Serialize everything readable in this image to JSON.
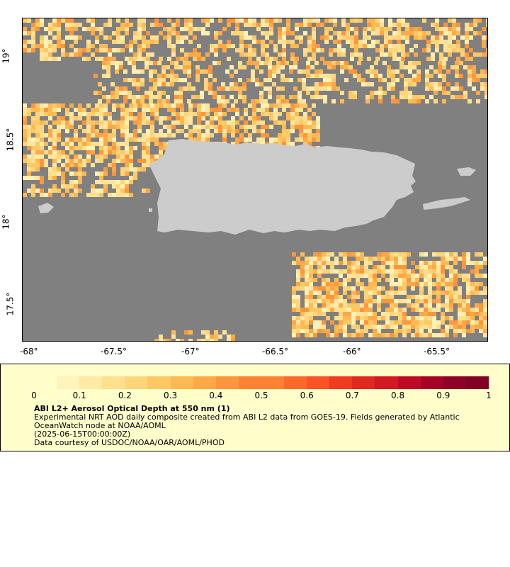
{
  "map": {
    "x_ticks": [
      "-68°",
      "-67.5°",
      "-67°",
      "-66.5°",
      "-66°",
      "-65.5°"
    ],
    "y_ticks": [
      "19°",
      "18.5°",
      "18°",
      "17.5°"
    ],
    "land_color": "#cccccc",
    "nodata_color": "#808080"
  },
  "legend": {
    "scale_labels": [
      "0",
      "0.1",
      "0.2",
      "0.3",
      "0.4",
      "0.5",
      "0.6",
      "0.7",
      "0.8",
      "0.9",
      "1"
    ],
    "title": "ABI L2+ Aerosol Optical Depth at 550 nm (1)",
    "desc": "Experimental NRT AOD daily composite created from ABI L2 data from GOES-19. Fields generated by Atlantic OceanWatch node at NOAA/AOML",
    "time": "(2025-06-15T00:00:00Z)",
    "credit": "Data courtesy of USDOC/NOAA/OAR/AOML/PHOD",
    "colors": [
      "#ffffcc",
      "#fff4bb",
      "#ffeaa6",
      "#fee08f",
      "#fed57a",
      "#fec965",
      "#feb953",
      "#fea848",
      "#fd963d",
      "#fd8232",
      "#fc6a2a",
      "#f85226",
      "#ef3b22",
      "#e12821",
      "#d11823",
      "#bd0b26",
      "#a50026",
      "#8f0028",
      "#800026"
    ]
  }
}
